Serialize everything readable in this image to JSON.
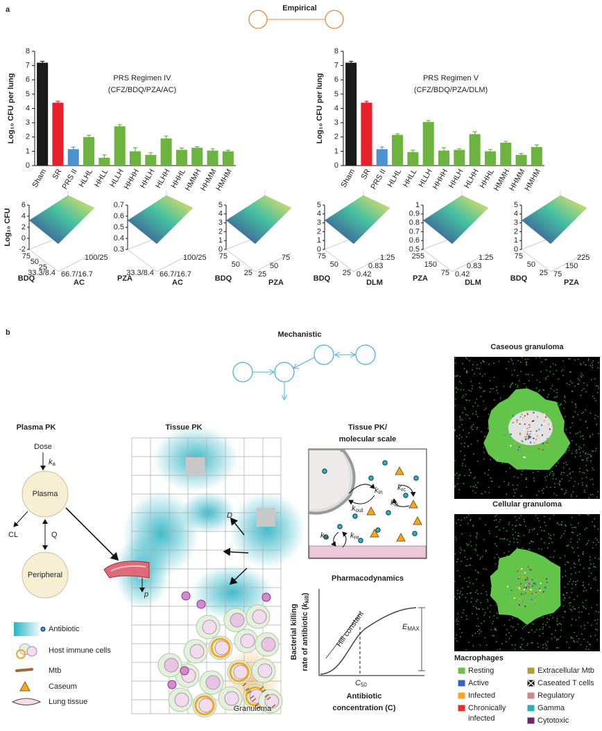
{
  "chart_data": [
    {
      "type": "bar",
      "title": "PRS Regimen IV",
      "subtitle": "(CFZ/BDQ/PZA/AC)",
      "y_label": "Log₁₀ CFU per lung",
      "categories": [
        "Sham",
        "SR",
        "PRS II",
        "HLHL",
        "HHLL",
        "HLLH",
        "HHHH",
        "HHLH",
        "HLHH",
        "HHHL",
        "HMMH",
        "HHMM",
        "HMHM"
      ],
      "values": [
        7.2,
        4.4,
        1.15,
        2.0,
        0.55,
        2.75,
        1.0,
        0.75,
        1.9,
        1.1,
        1.25,
        1.05,
        1.0
      ],
      "errors": [
        0.1,
        0.1,
        0.15,
        0.12,
        0.2,
        0.12,
        0.25,
        0.15,
        0.17,
        0.13,
        0.08,
        0.12,
        0.08
      ],
      "colors": [
        "#1a1a1a",
        "#e8202a",
        "#4b90d0",
        "#6cb33f",
        "#6cb33f",
        "#6cb33f",
        "#6cb33f",
        "#6cb33f",
        "#6cb33f",
        "#6cb33f",
        "#6cb33f",
        "#6cb33f",
        "#6cb33f"
      ],
      "ylim": [
        0,
        8
      ],
      "yticks": [
        0,
        1,
        2,
        3,
        4,
        5,
        6,
        7,
        8
      ]
    },
    {
      "type": "bar",
      "title": "PRS Regimen V",
      "subtitle": "(CFZ/BDQ/PZA/DLM)",
      "y_label": "Log₁₀ CFU per lung",
      "categories": [
        "Sham",
        "SR",
        "PRS II",
        "HLHL",
        "HHLL",
        "HLLH",
        "HHHH",
        "HHLH",
        "HLHH",
        "HHHL",
        "HMMH",
        "HHMM",
        "HMHM"
      ],
      "values": [
        7.2,
        4.4,
        1.15,
        2.15,
        0.95,
        3.05,
        1.05,
        1.1,
        2.2,
        1.0,
        1.6,
        0.75,
        1.3
      ],
      "errors": [
        0.1,
        0.1,
        0.15,
        0.08,
        0.13,
        0.1,
        0.2,
        0.08,
        0.17,
        0.13,
        0.1,
        0.1,
        0.15
      ],
      "colors": [
        "#1a1a1a",
        "#e8202a",
        "#4b90d0",
        "#6cb33f",
        "#6cb33f",
        "#6cb33f",
        "#6cb33f",
        "#6cb33f",
        "#6cb33f",
        "#6cb33f",
        "#6cb33f",
        "#6cb33f",
        "#6cb33f"
      ],
      "ylim": [
        0,
        8
      ],
      "yticks": [
        0,
        1,
        2,
        3,
        4,
        5,
        6,
        7,
        8
      ]
    }
  ],
  "figure": {
    "panel_a_label": "a",
    "empirical": "Empirical",
    "surfaces": [
      {
        "z_label": "Log₁₀ CFU",
        "zticks": [
          6,
          4,
          2,
          0,
          -2
        ],
        "x_label": "BDQ",
        "xticks": [
          75,
          50,
          25,
          "33.3/8.4"
        ],
        "y_label": "AC",
        "yticks": [
          "66.7/16.7",
          "100/25"
        ]
      },
      {
        "zticks": [
          0.7,
          0.6,
          0.5,
          0.4,
          0.3
        ],
        "x_label": "PZA",
        "xticks": [
          "33.3/8.4"
        ],
        "y_label": "AC",
        "yticks": [
          "66.7/16.7",
          "100/25"
        ]
      },
      {
        "zticks": [
          5,
          4,
          3,
          2,
          1,
          0
        ],
        "x_label": "BDQ",
        "xticks": [
          75,
          50,
          25
        ],
        "y_label": "PZA",
        "yticks": [
          25,
          50,
          75
        ]
      },
      {
        "zticks": [
          5,
          4,
          3,
          2,
          1,
          0
        ],
        "x_label": "BDQ",
        "xticks": [
          75,
          50,
          25
        ],
        "y_label": "DLM",
        "yticks": [
          0.42,
          0.83,
          1.25
        ]
      },
      {
        "zticks": [
          1,
          0.9,
          0.8,
          0.7,
          0.6,
          0.5
        ],
        "x_label": "PZA",
        "xticks": [
          255,
          150,
          75
        ],
        "y_label": "DLM",
        "yticks": [
          0.42,
          0.83,
          1.25
        ]
      },
      {
        "zticks": [
          5,
          4,
          3,
          2,
          1,
          0
        ],
        "x_label": "BDQ",
        "xticks": [
          75,
          50,
          25
        ],
        "y_label": "PZA",
        "yticks": [
          75,
          150,
          225
        ]
      }
    ],
    "panel_b_label": "b",
    "mechanistic": "Mechanistic",
    "plasma_pk": {
      "title": "Plasma PK",
      "dose": "Dose",
      "ka": {
        "symbol": "k",
        "subscript": "a"
      },
      "plasma": "Plasma",
      "cl": "CL",
      "q": "Q",
      "peripheral": "Peripheral"
    },
    "tissue_pk": {
      "title": "Tissue PK",
      "d": "D",
      "p": "p",
      "granuloma": "Granuloma"
    },
    "legend": [
      "Antibiotic",
      "Host immune cells",
      "Mtb",
      "Caseum",
      "Lung tissue"
    ],
    "molecular": {
      "title": [
        "Tissue PK/",
        "molecular scale"
      ],
      "rates": [
        {
          "symbol": "k",
          "subscript": "in"
        },
        {
          "symbol": "k",
          "subscript": "out"
        },
        {
          "symbol": "k",
          "subscript": "rc"
        },
        {
          "symbol": "k",
          "subscript": "fc"
        },
        {
          "symbol": "k",
          "subscript": "fe"
        },
        {
          "symbol": "k",
          "subscript": "re"
        }
      ]
    },
    "pd": {
      "title": "Pharmacodynamics",
      "y_label": "Bacterial killing",
      "y_label2": "rate of antibiotic (",
      "kkill": {
        "symbol": "k",
        "subscript": "kill"
      },
      "y_close": ")",
      "hill": "Hill constant",
      "emax": {
        "symbol": "E",
        "subscript": "MAX"
      },
      "c50": {
        "symbol": "C",
        "subscript": "50"
      },
      "x_label": [
        "Antibiotic",
        "concentration (C)"
      ]
    },
    "granulomas": [
      "Caseous granuloma",
      "Cellular granuloma"
    ],
    "macrophages": {
      "title": "Macrophages",
      "items": [
        {
          "label": [
            "Resting"
          ],
          "color": "#6cc04a"
        },
        {
          "label": [
            "Active"
          ],
          "color": "#3b5fc4"
        },
        {
          "label": [
            "Infected"
          ],
          "color": "#f5a623"
        },
        {
          "label": [
            "Chronically",
            "infected"
          ],
          "color": "#e8302a"
        },
        {
          "label": [
            "Extracellular Mtb"
          ],
          "color": "#a9a23a"
        },
        {
          "label": [
            "Caseated T cells"
          ],
          "color": "#111111"
        },
        {
          "label": [
            "Regulatory"
          ],
          "color": "#c98b8b"
        },
        {
          "label": [
            "Gamma"
          ],
          "color": "#2ab3b0"
        },
        {
          "label": [
            "Cytotoxic"
          ],
          "color": "#6a2a6a"
        }
      ]
    }
  }
}
